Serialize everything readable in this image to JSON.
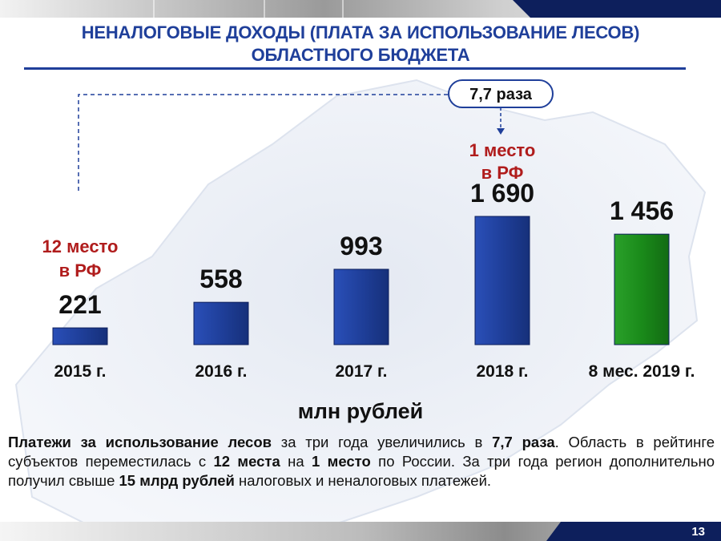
{
  "title": {
    "line1": "НЕНАЛОГОВЫЕ ДОХОДЫ (ПЛАТА ЗА ИСПОЛЬЗОВАНИЕ ЛЕСОВ)",
    "line2": "ОБЛАСТНОГО БЮДЖЕТА"
  },
  "colors": {
    "title": "#1f3f9a",
    "bar_blue": "#1f3f9a",
    "bar_green": "#1a8a1a",
    "rank_red": "#b01c1c"
  },
  "chart_data": {
    "type": "bar",
    "categories": [
      "2015 г.",
      "2016 г.",
      "2017 г.",
      "2018 г.",
      "8 мес. 2019 г."
    ],
    "values": [
      221,
      558,
      993,
      1690,
      1456
    ],
    "value_labels": [
      "221",
      "558",
      "993",
      "1 690",
      "1 456"
    ],
    "bar_colors": [
      "blue",
      "blue",
      "blue",
      "blue",
      "green"
    ],
    "annotations": {
      "rank_2015": [
        "12 место",
        "в РФ"
      ],
      "rank_2018": [
        "1 место",
        "в РФ"
      ],
      "growth": "7,7 раза"
    },
    "unit_label": "млн рублей"
  },
  "description": {
    "parts": [
      {
        "text": "Платежи за использование лесов",
        "bold": true
      },
      {
        "text": " за три года увеличились в ",
        "bold": false
      },
      {
        "text": "7,7 раза",
        "bold": true
      },
      {
        "text": ". Область в рейтинге субъектов переместилась с ",
        "bold": false
      },
      {
        "text": "12 места",
        "bold": true
      },
      {
        "text": " на ",
        "bold": false
      },
      {
        "text": "1 место",
        "bold": true
      },
      {
        "text": " по России. За три года регион дополнительно получил свыше ",
        "bold": false
      },
      {
        "text": "15 млрд рублей",
        "bold": true
      },
      {
        "text": " налоговых и неналоговых платежей.",
        "bold": false
      }
    ]
  },
  "page_number": "13"
}
